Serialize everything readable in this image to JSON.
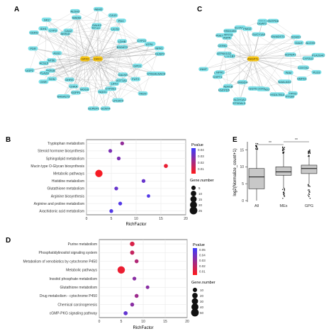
{
  "panels": {
    "A": {
      "label": "A",
      "nodes": [
        "ST6GALNAC6",
        "GPD1",
        "GALNS",
        "FUT2",
        "UGT1A1",
        "FA2H",
        "LIPH",
        "CYP2E1",
        "LPCAT4",
        "NQO1",
        "GCNT4",
        "SCPEP1",
        "MOGS",
        "SGPP1",
        "B4GALT3",
        "CHKA",
        "DHRS",
        "SON",
        "GSR",
        "AKR1B",
        "PLA2G",
        "UGP2",
        "ACSL5",
        "NT5E",
        "ASS1",
        "PDR",
        "CERS",
        "IDH1",
        "CYP3",
        "GK2",
        "AKR1D",
        "CA12",
        "MAOB",
        "ALDH3",
        "HPGD",
        "GALK2",
        "ABHD",
        "CA13",
        "UGT8",
        "PDC",
        "LDHB",
        "B3GAT3",
        "CYP2J",
        "PLD1",
        "ATP6",
        "NPR1",
        "DUSP2"
      ],
      "highlight": [
        "GPX2",
        "DKK1"
      ]
    },
    "B": {
      "label": "B",
      "categories": [
        "Tryptophan metabolism",
        "Steroid hormone biosynthesis",
        "Sphingolipid metabolism",
        "Mucin type O-Glycan biosynthesis",
        "Metabolic pathways",
        "Histidine metabolism",
        "Glutathione metabolism",
        "Arginine biosynthesis",
        "Arginine and proline metabolism",
        "Arachidonic acid metabolism"
      ],
      "xlabel": "RichFactor",
      "xticks": [
        "0",
        "5",
        "10",
        "15",
        "20"
      ],
      "legend_pvalue_title": "Pvalue",
      "legend_pvalue_ticks": [
        "0.04",
        "0.03",
        "0.02",
        "0.01"
      ],
      "legend_size_title": "Gene.number",
      "legend_size_labels": [
        "5",
        "10",
        "15",
        "20",
        "25"
      ]
    },
    "C": {
      "label": "C",
      "nodes": [
        "PLD3",
        "COX7A1",
        "SMPD1",
        "PAM",
        "GPX3",
        "NAALAD2",
        "PYGM",
        "HSD17B14",
        "NAALAD1",
        "ACOX2",
        "GGT5",
        "ST3GAL3",
        "ALDH1A1",
        "DMGDH",
        "ADH1B",
        "ENTPD5",
        "CHPT1",
        "PDE1A",
        "NPR1",
        "INMT",
        "CYP1B1",
        "ATP6V1G2",
        "CERKL",
        "PDE1B",
        "MDGS",
        "ASPA",
        "HSD11B1",
        "ELOVL7",
        "FMO2",
        "GUCY1A3",
        "PTEN",
        "DGAT1",
        "ENTPD6",
        "GNPDA2",
        "NDST1",
        "DOHD1",
        "GALE",
        "ALOX5",
        "SCPEP1",
        "PLA2G4C",
        "CYP2U1"
      ],
      "highlight": [
        "ANGPTL"
      ]
    },
    "D": {
      "label": "D",
      "categories": [
        "Purine metabolism",
        "Phosphatidylinositol signaling system",
        "Metabolism of xenobiotics by cytochrome P450",
        "Metabolic pathways",
        "Inositol phosphate metabolism",
        "Glutathione metabolism",
        "Drug metabolism - cytochrome P450",
        "Chemical carcinogenesis",
        "cGMP-PKG signaling pathway"
      ],
      "xlabel": "RichFactor",
      "xticks": [
        "0",
        "5",
        "10",
        "15",
        "20"
      ],
      "legend_pvalue_title": "Pvalue",
      "legend_pvalue_ticks": [
        "0.05",
        "0.04",
        "0.03",
        "0.02",
        "0.01"
      ],
      "legend_size_title": "Gene.number",
      "legend_size_labels": [
        "10",
        "20",
        "30",
        "40",
        "50"
      ]
    },
    "E": {
      "label": "E",
      "ylabel": "log2(Normalize_count+1)",
      "yticks": [
        "0",
        "5",
        "10",
        "15"
      ],
      "categories": [
        "All",
        "MEs",
        "GPG"
      ],
      "significance": [
        "**",
        "**"
      ]
    }
  },
  "colors": {
    "node": "#7ee0e8",
    "highlight": "#f5c518",
    "edge": "#9a9a9a",
    "dot": "#e0192b",
    "pv_high": "#3b3bff",
    "pv_low": "#ff1a1a"
  },
  "chart_data": [
    {
      "panel": "B",
      "type": "scatter",
      "categories": [
        "Tryptophan metabolism",
        "Steroid hormone biosynthesis",
        "Sphingolipid metabolism",
        "Mucin type O-Glycan biosynthesis",
        "Metabolic pathways",
        "Histidine metabolism",
        "Glutathione metabolism",
        "Arginine biosynthesis",
        "Arginine and proline metabolism",
        "Arachidonic acid metabolism"
      ],
      "x": [
        7.2,
        4.8,
        6.5,
        16.0,
        2.5,
        11.5,
        6.0,
        12.5,
        6.8,
        5.0
      ],
      "gene_number": [
        3,
        3,
        3,
        4,
        22,
        3,
        3,
        2,
        3,
        3
      ],
      "pvalue": [
        0.025,
        0.03,
        0.03,
        0.005,
        0.002,
        0.035,
        0.035,
        0.04,
        0.04,
        0.04
      ],
      "xlabel": "RichFactor",
      "xlim": [
        0,
        20
      ]
    },
    {
      "panel": "D",
      "type": "scatter",
      "categories": [
        "Purine metabolism",
        "Phosphatidylinositol signaling system",
        "Metabolism of xenobiotics by cytochrome P450",
        "Metabolic pathways",
        "Inositol phosphate metabolism",
        "Glutathione metabolism",
        "Drug metabolism - cytochrome P450",
        "Chemical carcinogenesis",
        "cGMP-PKG signaling pathway"
      ],
      "x": [
        7.5,
        7.5,
        8.5,
        5.0,
        8.0,
        11.0,
        8.5,
        7.5,
        6.0
      ],
      "gene_number": [
        12,
        9,
        7,
        45,
        6,
        5,
        7,
        7,
        8
      ],
      "pvalue": [
        0.01,
        0.015,
        0.02,
        0.005,
        0.03,
        0.03,
        0.025,
        0.03,
        0.04
      ],
      "xlabel": "RichFactor",
      "xlim": [
        0,
        20
      ]
    },
    {
      "panel": "E",
      "type": "box",
      "categories": [
        "All",
        "MEs",
        "GPG"
      ],
      "box_stats": [
        {
          "min": 0,
          "q1": 3.5,
          "median": 7,
          "q3": 9.5,
          "max": 15
        },
        {
          "min": 4,
          "q1": 7.5,
          "median": 8.5,
          "q3": 10,
          "max": 14
        },
        {
          "min": 5,
          "q1": 8,
          "median": 9.5,
          "q3": 10.5,
          "max": 13
        }
      ],
      "ylabel": "log2(Normalize_count+1)",
      "ylim": [
        0,
        17
      ]
    }
  ]
}
